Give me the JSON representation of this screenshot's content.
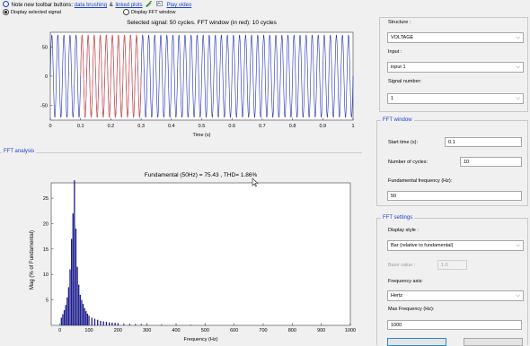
{
  "toolbar_note": {
    "prefix": "Note new toolbar buttons:",
    "link1": "data brushing",
    "amp": "&",
    "link2": "linked plots",
    "link3": "Play video"
  },
  "display_options": {
    "selected_signal": "Display selected signal",
    "fft_window": "Display FFT window"
  },
  "signal_plot": {
    "title": "Selected signal: 50 cycles. FFT window (in red): 10 cycles",
    "xlabel": "Time (s)",
    "xticks": [
      "0",
      "0.1",
      "0.2",
      "0.3",
      "0.4",
      "0.5",
      "0.6",
      "0.7",
      "0.8",
      "0.9",
      "1"
    ],
    "yticks": [
      "50",
      "0",
      "-50"
    ],
    "colors": {
      "signal": "#1f2db5",
      "window": "#e05a4a"
    }
  },
  "fft_analysis": {
    "section_title": "FFT analysis",
    "title": "Fundamental (50Hz) = 75.43 , THD= 1.86%",
    "xlabel": "Frequency (Hz)",
    "ylabel": "Mag (% of Fundamental)",
    "xticks": [
      "0",
      "100",
      "200",
      "300",
      "400",
      "500",
      "600",
      "700",
      "800",
      "900",
      "1000"
    ],
    "yticks": [
      "25",
      "20",
      "15",
      "10",
      "5"
    ],
    "color": "#1a1a8c"
  },
  "chart_data": {
    "type": "bar",
    "x": [
      5,
      10,
      15,
      20,
      25,
      30,
      35,
      40,
      45,
      50,
      55,
      60,
      65,
      70,
      75,
      80,
      85,
      90,
      95,
      100,
      110,
      120,
      130,
      140,
      150,
      160,
      170,
      180,
      190,
      200,
      220,
      240,
      260,
      280,
      300,
      350,
      400,
      450,
      500,
      600,
      700,
      800,
      900,
      1000
    ],
    "values": [
      1.5,
      2.2,
      3,
      4,
      5.5,
      7.5,
      11,
      17,
      22,
      28.5,
      19,
      11.5,
      8,
      6,
      5,
      4.2,
      3.4,
      2.8,
      2.3,
      1.9,
      1.5,
      1.3,
      1.1,
      0.9,
      0.8,
      0.7,
      0.6,
      0.55,
      0.5,
      0.45,
      0.4,
      0.35,
      0.3,
      0.3,
      0.25,
      0.2,
      0.2,
      0.15,
      0.15,
      0.1,
      0.1,
      0.1,
      0.1,
      0.1
    ],
    "xlim": [
      -30,
      1000
    ],
    "ylim": [
      0,
      28
    ],
    "title": "Fundamental (50Hz) = 75.43 , THD= 1.86%",
    "xlabel": "Frequency (Hz)",
    "ylabel": "Mag (% of Fundamental)",
    "grid": false
  },
  "right_panel": {
    "structure_label": "Structure :",
    "structure_value": "VOLTAGE",
    "input_label": "Input :",
    "input_value": "input 1",
    "signal_number_label": "Signal number:",
    "signal_number_value": "1"
  },
  "fft_window": {
    "title": "FFT window",
    "start_time_label": "Start time (s):",
    "start_time_value": "0.1",
    "cycles_label": "Number of cycles:",
    "cycles_value": "10",
    "fund_freq_label": "Fundamental frequency (Hz):",
    "fund_freq_value": "50"
  },
  "fft_settings": {
    "title": "FFT settings",
    "display_style_label": "Display style :",
    "display_style_value": "Bar (relative to fundamental)",
    "base_value_label": "Base value :",
    "base_value_value": "1.0",
    "freq_axis_label": "Frequency axis:",
    "freq_axis_value": "Hertz",
    "max_freq_label": "Max Frequency (Hz):",
    "max_freq_value": "1000"
  }
}
